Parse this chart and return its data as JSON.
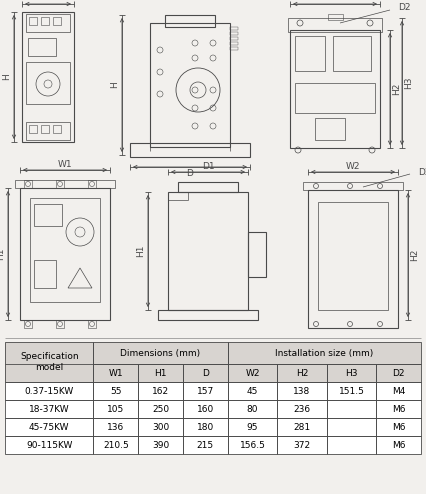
{
  "bg_color": "#f2f0ed",
  "line_color": "#4a4a4a",
  "table_header_bg": "#d8d4d0",
  "table_bg": "#ffffff",
  "table_border": "#4a4a4a",
  "table_fontsize": 6.5,
  "rows": [
    [
      "0.37-15KW",
      "55",
      "162",
      "157",
      "45",
      "138",
      "151.5",
      "M4"
    ],
    [
      "18-37KW",
      "105",
      "250",
      "160",
      "80",
      "236",
      "",
      "M6"
    ],
    [
      "45-75KW",
      "136",
      "300",
      "180",
      "95",
      "281",
      "",
      "M6"
    ],
    [
      "90-115KW",
      "210.5",
      "390",
      "215",
      "156.5",
      "372",
      "",
      "M6"
    ]
  ],
  "fig_w": 4.26,
  "fig_h": 4.94,
  "dpi": 100
}
